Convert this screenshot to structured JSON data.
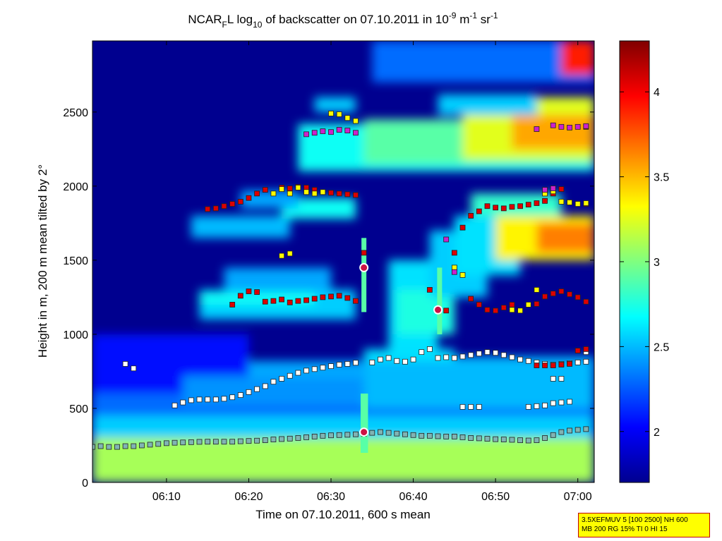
{
  "chart_data": {
    "type": "heatmap",
    "title": {
      "pre": "NCAR",
      "sub1": "F",
      "mid1": "L log",
      "sub2": "10",
      "mid2": " of backscatter on 07.10.2011 in 10",
      "sup1": "-9",
      "mid3": " m",
      "sup2": "-1",
      "mid4": " sr",
      "sup3": "-1"
    },
    "xlabel": "Time on 07.10.2011, 600 s mean",
    "ylabel": "Height in m, 200 m mean tilted by 2°",
    "x_range_min": [
      1.0,
      62.0
    ],
    "x_ticks": [
      {
        "v": 10,
        "label": "06:10"
      },
      {
        "v": 20,
        "label": "06:20"
      },
      {
        "v": 30,
        "label": "06:30"
      },
      {
        "v": 40,
        "label": "06:40"
      },
      {
        "v": 50,
        "label": "06:50"
      },
      {
        "v": 60,
        "label": "07:00"
      }
    ],
    "ylim": [
      0,
      2980
    ],
    "y_ticks": [
      0,
      500,
      1000,
      1500,
      2000,
      2500
    ],
    "colorbar": {
      "range": [
        1.7,
        4.3
      ],
      "ticks": [
        {
          "v": 2,
          "label": "2"
        },
        {
          "v": 2.5,
          "label": "2.5"
        },
        {
          "v": 3,
          "label": "3"
        },
        {
          "v": 3.5,
          "label": "3.5"
        },
        {
          "v": 4,
          "label": "4"
        }
      ],
      "colormap": "jet"
    },
    "field_regions": [
      {
        "t": [
          1,
          62
        ],
        "h": [
          0,
          300
        ],
        "v": 3.1
      },
      {
        "t": [
          1,
          62
        ],
        "h": [
          300,
          450
        ],
        "v": 2.55
      },
      {
        "t": [
          1,
          62
        ],
        "h": [
          450,
          600
        ],
        "v": 2.3
      },
      {
        "t": [
          1,
          20
        ],
        "h": [
          600,
          1000
        ],
        "v": 2.05
      },
      {
        "t": [
          12,
          34
        ],
        "h": [
          520,
          720
        ],
        "v": 2.4
      },
      {
        "t": [
          20,
          34
        ],
        "h": [
          700,
          820
        ],
        "v": 2.45
      },
      {
        "t": [
          34,
          62
        ],
        "h": [
          500,
          850
        ],
        "v": 2.5
      },
      {
        "t": [
          34,
          45
        ],
        "h": [
          820,
          900
        ],
        "v": 2.6
      },
      {
        "t": [
          14,
          33
        ],
        "h": [
          1100,
          1300
        ],
        "v": 2.55
      },
      {
        "t": [
          14,
          28
        ],
        "h": [
          1200,
          1280
        ],
        "v": 2.7
      },
      {
        "t": [
          17,
          30
        ],
        "h": [
          1300,
          1450
        ],
        "v": 2.45
      },
      {
        "t": [
          13,
          25
        ],
        "h": [
          1650,
          1800
        ],
        "v": 2.5
      },
      {
        "t": [
          24,
          33
        ],
        "h": [
          1780,
          1920
        ],
        "v": 2.7
      },
      {
        "t": [
          19,
          26
        ],
        "h": [
          1850,
          1970
        ],
        "v": 2.45
      },
      {
        "t": [
          37,
          43
        ],
        "h": [
          900,
          1500
        ],
        "v": 2.6
      },
      {
        "t": [
          38,
          45
        ],
        "h": [
          1000,
          1300
        ],
        "v": 2.75
      },
      {
        "t": [
          42,
          49
        ],
        "h": [
          1250,
          1700
        ],
        "v": 2.55
      },
      {
        "t": [
          45,
          53
        ],
        "h": [
          1400,
          1800
        ],
        "v": 2.6
      },
      {
        "t": [
          50,
          62
        ],
        "h": [
          1500,
          1800
        ],
        "v": 3.35
      },
      {
        "t": [
          55,
          62
        ],
        "h": [
          1550,
          1750
        ],
        "v": 3.65
      },
      {
        "t": [
          47,
          58
        ],
        "h": [
          1800,
          1950
        ],
        "v": 2.8
      },
      {
        "t": [
          26,
          62
        ],
        "h": [
          2100,
          2420
        ],
        "v": 2.7
      },
      {
        "t": [
          34,
          62
        ],
        "h": [
          2150,
          2450
        ],
        "v": 2.9
      },
      {
        "t": [
          46,
          62
        ],
        "h": [
          2180,
          2600
        ],
        "v": 3.25
      },
      {
        "t": [
          52,
          62
        ],
        "h": [
          2250,
          2480
        ],
        "v": 3.55
      },
      {
        "t": [
          28,
          33
        ],
        "h": [
          2500,
          2600
        ],
        "v": 2.55
      },
      {
        "t": [
          43,
          55
        ],
        "h": [
          2480,
          2620
        ],
        "v": 2.55
      },
      {
        "t": [
          35,
          62
        ],
        "h": [
          2700,
          2980
        ],
        "v": 2.3
      },
      {
        "t": [
          58,
          62
        ],
        "h": [
          2750,
          2980
        ],
        "v": 3.9
      },
      {
        "t": [
          33.7,
          34.3
        ],
        "h": [
          1150,
          1650
        ],
        "v": 2.9
      },
      {
        "t": [
          42.9,
          43.5
        ],
        "h": [
          1000,
          1450
        ],
        "v": 2.9
      },
      {
        "t": [
          33.6,
          34.5
        ],
        "h": [
          200,
          600
        ],
        "v": 2.9
      }
    ],
    "markers": {
      "white": [
        [
          5,
          800
        ],
        [
          6,
          770
        ],
        [
          11,
          520
        ],
        [
          12,
          540
        ],
        [
          13,
          555
        ],
        [
          14,
          560
        ],
        [
          15,
          560
        ],
        [
          16,
          560
        ],
        [
          17,
          565
        ],
        [
          18,
          575
        ],
        [
          19,
          590
        ],
        [
          20,
          610
        ],
        [
          21,
          630
        ],
        [
          22,
          650
        ],
        [
          23,
          680
        ],
        [
          24,
          700
        ],
        [
          25,
          720
        ],
        [
          26,
          740
        ],
        [
          27,
          755
        ],
        [
          28,
          765
        ],
        [
          29,
          775
        ],
        [
          30,
          785
        ],
        [
          31,
          795
        ],
        [
          32,
          800
        ],
        [
          33,
          808
        ],
        [
          35,
          810
        ],
        [
          36,
          830
        ],
        [
          37,
          840
        ],
        [
          38,
          820
        ],
        [
          39,
          815
        ],
        [
          40,
          830
        ],
        [
          41,
          880
        ],
        [
          42,
          900
        ],
        [
          43,
          840
        ],
        [
          44,
          845
        ],
        [
          45,
          840
        ],
        [
          46,
          850
        ],
        [
          47,
          860
        ],
        [
          48,
          870
        ],
        [
          49,
          880
        ],
        [
          50,
          875
        ],
        [
          51,
          860
        ],
        [
          52,
          845
        ],
        [
          53,
          830
        ],
        [
          54,
          820
        ],
        [
          55,
          810
        ],
        [
          56,
          800
        ],
        [
          57,
          795
        ],
        [
          58,
          800
        ],
        [
          59,
          805
        ],
        [
          60,
          810
        ],
        [
          61,
          815
        ],
        [
          46,
          510
        ],
        [
          47,
          510
        ],
        [
          48,
          510
        ],
        [
          54,
          510
        ],
        [
          55,
          515
        ],
        [
          56,
          520
        ],
        [
          57,
          535
        ],
        [
          58,
          540
        ],
        [
          59,
          545
        ],
        [
          57,
          700
        ],
        [
          58,
          700
        ],
        [
          61,
          880
        ]
      ],
      "teal": [
        [
          1,
          240
        ],
        [
          2,
          245
        ],
        [
          3,
          240
        ],
        [
          4,
          240
        ],
        [
          5,
          245
        ],
        [
          6,
          245
        ],
        [
          7,
          250
        ],
        [
          8,
          255
        ],
        [
          9,
          260
        ],
        [
          10,
          265
        ],
        [
          11,
          268
        ],
        [
          12,
          270
        ],
        [
          13,
          272
        ],
        [
          14,
          274
        ],
        [
          15,
          275
        ],
        [
          16,
          275
        ],
        [
          17,
          275
        ],
        [
          18,
          275
        ],
        [
          19,
          278
        ],
        [
          20,
          280
        ],
        [
          21,
          282
        ],
        [
          22,
          285
        ],
        [
          23,
          290
        ],
        [
          24,
          293
        ],
        [
          25,
          296
        ],
        [
          26,
          300
        ],
        [
          27,
          305
        ],
        [
          28,
          310
        ],
        [
          29,
          315
        ],
        [
          30,
          318
        ],
        [
          31,
          320
        ],
        [
          32,
          322
        ],
        [
          33,
          325
        ],
        [
          34,
          328
        ],
        [
          35,
          335
        ],
        [
          36,
          340
        ],
        [
          37,
          335
        ],
        [
          38,
          330
        ],
        [
          39,
          325
        ],
        [
          40,
          320
        ],
        [
          41,
          315
        ],
        [
          42,
          315
        ],
        [
          43,
          312
        ],
        [
          44,
          310
        ],
        [
          45,
          310
        ],
        [
          46,
          305
        ],
        [
          47,
          300
        ],
        [
          48,
          298
        ],
        [
          49,
          295
        ],
        [
          50,
          292
        ],
        [
          51,
          290
        ],
        [
          52,
          288
        ],
        [
          53,
          285
        ],
        [
          54,
          283
        ],
        [
          55,
          285
        ],
        [
          56,
          300
        ],
        [
          57,
          320
        ],
        [
          58,
          340
        ],
        [
          59,
          350
        ],
        [
          60,
          355
        ],
        [
          61,
          360
        ]
      ],
      "red": [
        [
          15,
          1845
        ],
        [
          16,
          1850
        ],
        [
          17,
          1865
        ],
        [
          18,
          1880
        ],
        [
          19,
          1895
        ],
        [
          20,
          1920
        ],
        [
          21,
          1950
        ],
        [
          22,
          1975
        ],
        [
          24,
          1990
        ],
        [
          25,
          1985
        ],
        [
          26,
          1995
        ],
        [
          27,
          1990
        ],
        [
          28,
          1975
        ],
        [
          29,
          1960
        ],
        [
          30,
          1955
        ],
        [
          31,
          1950
        ],
        [
          32,
          1945
        ],
        [
          33,
          1940
        ],
        [
          18,
          1200
        ],
        [
          19,
          1260
        ],
        [
          20,
          1290
        ],
        [
          21,
          1285
        ],
        [
          22,
          1220
        ],
        [
          23,
          1225
        ],
        [
          24,
          1235
        ],
        [
          25,
          1215
        ],
        [
          26,
          1225
        ],
        [
          27,
          1230
        ],
        [
          28,
          1240
        ],
        [
          29,
          1250
        ],
        [
          30,
          1255
        ],
        [
          31,
          1260
        ],
        [
          32,
          1245
        ],
        [
          33,
          1225
        ],
        [
          42,
          1300
        ],
        [
          43,
          1170
        ],
        [
          44,
          1160
        ],
        [
          45,
          1550
        ],
        [
          46,
          1720
        ],
        [
          47,
          1800
        ],
        [
          48,
          1830
        ],
        [
          49,
          1865
        ],
        [
          50,
          1855
        ],
        [
          51,
          1850
        ],
        [
          52,
          1860
        ],
        [
          53,
          1865
        ],
        [
          54,
          1875
        ],
        [
          55,
          1885
        ],
        [
          56,
          1900
        ],
        [
          57,
          1950
        ],
        [
          58,
          1980
        ],
        [
          59,
          1890
        ],
        [
          60,
          1880
        ],
        [
          61,
          1880
        ],
        [
          47,
          1240
        ],
        [
          48,
          1200
        ],
        [
          49,
          1165
        ],
        [
          50,
          1160
        ],
        [
          51,
          1180
        ],
        [
          52,
          1200
        ],
        [
          55,
          1205
        ],
        [
          56,
          1255
        ],
        [
          57,
          1275
        ],
        [
          58,
          1290
        ],
        [
          59,
          1270
        ],
        [
          60,
          1250
        ],
        [
          61,
          1220
        ],
        [
          55,
          790
        ],
        [
          56,
          790
        ],
        [
          57,
          790
        ],
        [
          58,
          795
        ],
        [
          59,
          800
        ],
        [
          60,
          890
        ],
        [
          61,
          900
        ],
        [
          61,
          2400
        ],
        [
          34,
          1550
        ]
      ],
      "yellow": [
        [
          23,
          1950
        ],
        [
          24,
          1980
        ],
        [
          25,
          1950
        ],
        [
          26,
          1990
        ],
        [
          27,
          1960
        ],
        [
          28,
          1950
        ],
        [
          29,
          1960
        ],
        [
          24,
          1530
        ],
        [
          25,
          1545
        ],
        [
          30,
          2490
        ],
        [
          31,
          2485
        ],
        [
          32,
          2460
        ],
        [
          33,
          2440
        ],
        [
          45,
          1450
        ],
        [
          46,
          1400
        ],
        [
          52,
          1165
        ],
        [
          53,
          1160
        ],
        [
          54,
          1200
        ],
        [
          55,
          1300
        ],
        [
          56,
          1950
        ],
        [
          57,
          1965
        ],
        [
          58,
          1895
        ],
        [
          59,
          1890
        ],
        [
          60,
          1880
        ],
        [
          61,
          1885
        ]
      ],
      "magenta": [
        [
          27,
          2350
        ],
        [
          28,
          2360
        ],
        [
          29,
          2370
        ],
        [
          30,
          2365
        ],
        [
          31,
          2380
        ],
        [
          32,
          2375
        ],
        [
          33,
          2360
        ],
        [
          44,
          1640
        ],
        [
          45,
          1420
        ],
        [
          57,
          2410
        ],
        [
          58,
          2400
        ],
        [
          59,
          2395
        ],
        [
          60,
          2400
        ],
        [
          61,
          2405
        ],
        [
          55,
          2385
        ],
        [
          56,
          1975
        ],
        [
          57,
          1985
        ]
      ],
      "circles": [
        [
          34,
          1450
        ],
        [
          43,
          1165
        ],
        [
          34,
          340
        ]
      ]
    },
    "info_box": [
      "3.5XEFMUV 5 [100 2500] NH 600",
      "MB 200 RG 15% TI 0 HI 15"
    ]
  }
}
